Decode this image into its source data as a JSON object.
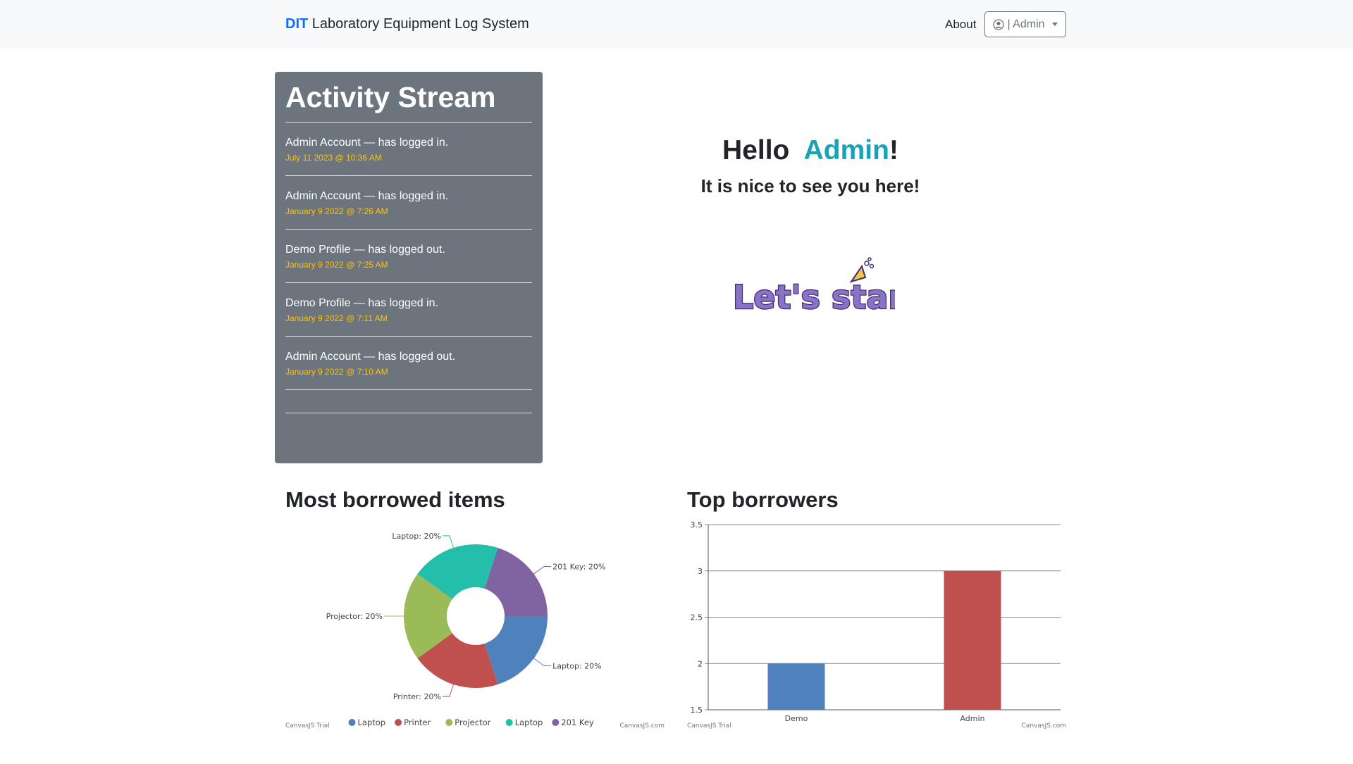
{
  "navbar": {
    "brand_prefix": "DIT",
    "brand_rest": "Laboratory Equipment Log System",
    "about_label": "About",
    "user_label": "| Admin"
  },
  "activity": {
    "title": "Activity Stream",
    "items": [
      {
        "text": "Admin Account — has logged in.",
        "time": "July 11 2023 @ 10:36 AM"
      },
      {
        "text": "Admin Account — has logged in.",
        "time": "January 9 2022 @ 7:26 AM"
      },
      {
        "text": "Demo Profile — has logged out.",
        "time": "January 9 2022 @ 7:25 AM"
      },
      {
        "text": "Demo Profile — has logged in.",
        "time": "January 9 2022 @ 7:11 AM"
      },
      {
        "text": "Admin Account — has logged out.",
        "time": "January 9 2022 @ 7:10 AM"
      }
    ]
  },
  "greeting": {
    "hello": "Hello",
    "name": "Admin",
    "exclaim": "!",
    "subtitle": "It is nice to see you here!",
    "lets_start": "Let's start!"
  },
  "colors": {
    "accent": "#17a2b8",
    "time": "#ffc107",
    "panel": "#6c757d",
    "brand": "#0d6efd"
  },
  "chart_data": [
    {
      "type": "pie",
      "title": "Most borrowed items",
      "slices": [
        {
          "label": "Laptop",
          "value": 20,
          "display": "Laptop: 20%",
          "color": "#4f81bc"
        },
        {
          "label": "Printer",
          "value": 20,
          "display": "Printer: 20%",
          "color": "#c0504e"
        },
        {
          "label": "Projector",
          "value": 20,
          "display": "Projector: 20%",
          "color": "#9bbb58"
        },
        {
          "label": "Laptop",
          "value": 20,
          "display": "Laptop: 20%",
          "color": "#23bfaa"
        },
        {
          "label": "201 Key",
          "value": 20,
          "display": "201 Key: 20%",
          "color": "#8064a1"
        }
      ],
      "legend": [
        "Laptop",
        "Printer",
        "Projector",
        "Laptop",
        "201 Key"
      ],
      "credit_left": "CanvasJS Trial",
      "credit_right": "CanvasJS.com"
    },
    {
      "type": "bar",
      "title": "Top borrowers",
      "categories": [
        "Demo",
        "Admin"
      ],
      "values": [
        2,
        3
      ],
      "colors": [
        "#4f81bc",
        "#c0504e"
      ],
      "ylim": [
        1.5,
        3.5
      ],
      "yticks": [
        "1.5",
        "2",
        "2.5",
        "3",
        "3.5"
      ],
      "credit_left": "CanvasJS Trial",
      "credit_right": "CanvasJS.com"
    }
  ]
}
